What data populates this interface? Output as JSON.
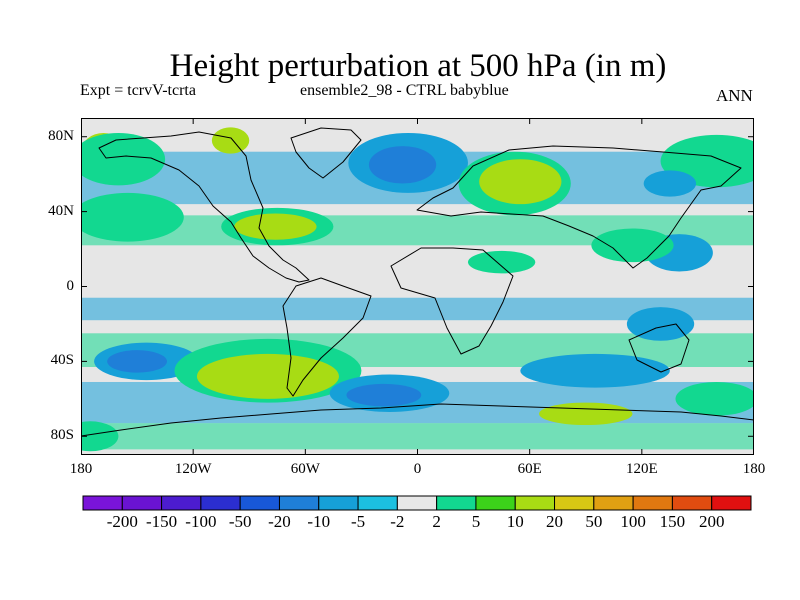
{
  "title": "Height perturbation at 500 hPa (in m)",
  "subtitle_left": "Expt = tcrvV-tcrta",
  "subtitle_center": "ensemble2_98 - CTRL babyblue",
  "season": "ANN",
  "map": {
    "projection": "cylindrical-equidistant",
    "lon_range": [
      -180,
      180
    ],
    "lat_range": [
      -90,
      90
    ],
    "lat_ticks": [
      {
        "label": "80N",
        "lat": 80
      },
      {
        "label": "40N",
        "lat": 40
      },
      {
        "label": "0",
        "lat": 0
      },
      {
        "label": "40S",
        "lat": -40
      },
      {
        "label": "80S",
        "lat": -80
      }
    ],
    "lon_ticks": [
      {
        "label": "180",
        "lon": -180
      },
      {
        "label": "120W",
        "lon": -120
      },
      {
        "label": "60W",
        "lon": -60
      },
      {
        "label": "0",
        "lon": 0
      },
      {
        "label": "60E",
        "lon": 60
      },
      {
        "label": "120E",
        "lon": 120
      },
      {
        "label": "180",
        "lon": 180
      }
    ],
    "background_color": "#e6e6e6",
    "regions": [
      {
        "level": 0,
        "lon": -155,
        "lat": 36,
        "rx": 24,
        "ry": 10
      },
      {
        "level": 1,
        "lon": -155,
        "lat": 37,
        "rx": 30,
        "ry": 13
      },
      {
        "level": 0,
        "lon": -168,
        "lat": 72,
        "rx": 12,
        "ry": 10
      },
      {
        "level": 1,
        "lon": -160,
        "lat": 68,
        "rx": 25,
        "ry": 14
      },
      {
        "level": 0,
        "lon": -100,
        "lat": 78,
        "rx": 10,
        "ry": 7
      },
      {
        "level": 1,
        "lon": -75,
        "lat": 32,
        "rx": 30,
        "ry": 10
      },
      {
        "level": 0,
        "lon": -76,
        "lat": 32,
        "rx": 22,
        "ry": 7
      },
      {
        "level": -1,
        "lon": -5,
        "lat": 66,
        "rx": 32,
        "ry": 16
      },
      {
        "level": -2,
        "lon": -8,
        "lat": 65,
        "rx": 18,
        "ry": 10
      },
      {
        "level": 1,
        "lon": 52,
        "lat": 55,
        "rx": 30,
        "ry": 17
      },
      {
        "level": 0,
        "lon": 55,
        "lat": 56,
        "rx": 22,
        "ry": 12
      },
      {
        "level": 1,
        "lon": 160,
        "lat": 67,
        "rx": 30,
        "ry": 14
      },
      {
        "level": -1,
        "lon": 135,
        "lat": 55,
        "rx": 14,
        "ry": 7
      },
      {
        "level": -1,
        "lon": 140,
        "lat": 18,
        "rx": 18,
        "ry": 10
      },
      {
        "level": 1,
        "lon": 115,
        "lat": 22,
        "rx": 22,
        "ry": 9
      },
      {
        "level": 1,
        "lon": 45,
        "lat": 13,
        "rx": 18,
        "ry": 6
      },
      {
        "level": -1,
        "lon": -145,
        "lat": -40,
        "rx": 28,
        "ry": 10
      },
      {
        "level": -2,
        "lon": -150,
        "lat": -40,
        "rx": 16,
        "ry": 6
      },
      {
        "level": 1,
        "lon": -80,
        "lat": -45,
        "rx": 50,
        "ry": 17
      },
      {
        "level": 0,
        "lon": -80,
        "lat": -48,
        "rx": 38,
        "ry": 12
      },
      {
        "level": -1,
        "lon": -15,
        "lat": -57,
        "rx": 32,
        "ry": 10
      },
      {
        "level": -2,
        "lon": -18,
        "lat": -58,
        "rx": 20,
        "ry": 6
      },
      {
        "level": -1,
        "lon": 130,
        "lat": -20,
        "rx": 18,
        "ry": 9
      },
      {
        "level": -1,
        "lon": 95,
        "lat": -45,
        "rx": 40,
        "ry": 9
      },
      {
        "level": 1,
        "lon": 160,
        "lat": -60,
        "rx": 22,
        "ry": 9
      },
      {
        "level": 0,
        "lon": 90,
        "lat": -68,
        "rx": 25,
        "ry": 6
      },
      {
        "level": 1,
        "lon": -175,
        "lat": -80,
        "rx": 15,
        "ry": 8
      }
    ]
  },
  "colorbar": {
    "colors": [
      "#7a14d9",
      "#6a13d2",
      "#4c1ccf",
      "#2b2ed0",
      "#1858d8",
      "#1f7fd8",
      "#16a0d8",
      "#1cc0e0",
      "#e8e8e8",
      "#12d890",
      "#3cd21a",
      "#a8dc14",
      "#d8c814",
      "#e0a012",
      "#e07810",
      "#e04c10",
      "#e01010"
    ],
    "labels": [
      "-200",
      "-150",
      "-100",
      "-50",
      "-20",
      "-10",
      "-5",
      "-2",
      "2",
      "5",
      "10",
      "20",
      "50",
      "100",
      "150",
      "200"
    ]
  }
}
